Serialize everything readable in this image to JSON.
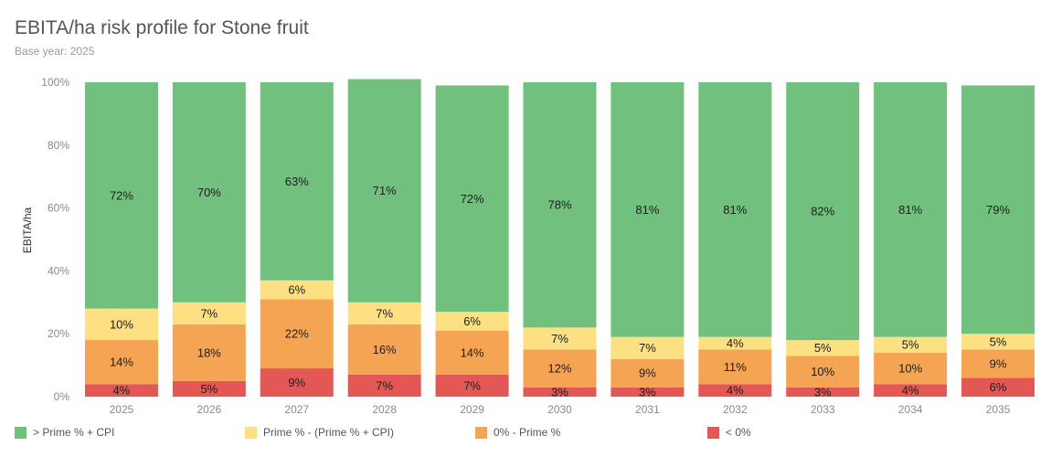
{
  "header": {
    "title": "EBITA/ha risk profile for Stone fruit",
    "subtitle": "Base year: 2025"
  },
  "colors": {
    "prime_plus_cpi": "#71c07e",
    "prime_band": "#fce082",
    "zero_prime": "#f4a453",
    "below_zero": "#e35755"
  },
  "legend": [
    {
      "label": "> Prime % + CPI",
      "color": "#71c07e"
    },
    {
      "label": "Prime % - (Prime % + CPI)",
      "color": "#fce082"
    },
    {
      "label": "0% - Prime %",
      "color": "#f4a453"
    },
    {
      "label": "< 0%",
      "color": "#e35755"
    }
  ],
  "chart_data": {
    "type": "bar",
    "stacked": true,
    "title": "EBITA/ha risk profile for Stone fruit",
    "subtitle": "Base year: 2025",
    "xlabel": "",
    "ylabel": "EBITA/ha",
    "ylim": [
      0,
      100
    ],
    "yticks": [
      "0%",
      "20%",
      "40%",
      "60%",
      "80%",
      "100%"
    ],
    "categories": [
      "2025",
      "2026",
      "2027",
      "2028",
      "2029",
      "2030",
      "2031",
      "2032",
      "2033",
      "2034",
      "2035"
    ],
    "series": [
      {
        "name": "< 0%",
        "color": "#e35755",
        "values": [
          4,
          5,
          9,
          7,
          7,
          3,
          3,
          4,
          3,
          4,
          6
        ]
      },
      {
        "name": "0% - Prime %",
        "color": "#f4a453",
        "values": [
          14,
          18,
          22,
          16,
          14,
          12,
          9,
          11,
          10,
          10,
          9
        ]
      },
      {
        "name": "Prime % - (Prime % + CPI)",
        "color": "#fce082",
        "values": [
          10,
          7,
          6,
          7,
          6,
          7,
          7,
          4,
          5,
          5,
          5
        ]
      },
      {
        "name": "> Prime % + CPI",
        "color": "#71c07e",
        "values": [
          72,
          70,
          63,
          71,
          72,
          78,
          81,
          81,
          82,
          81,
          79
        ]
      }
    ]
  }
}
